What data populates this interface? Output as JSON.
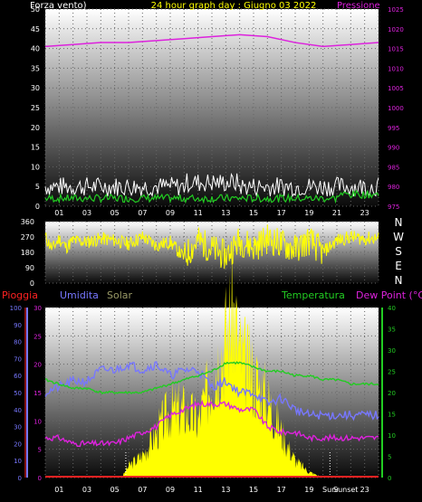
{
  "header": {
    "left_label": "Forza vento)",
    "title": "24 hour graph day : Giugno 03 2022",
    "right_label": "Pressione"
  },
  "compass": [
    "N",
    "W",
    "S",
    "E",
    "N"
  ],
  "bottom_header": {
    "rain": "Pioggia",
    "humidity": "Umidita",
    "solar": "Solar",
    "temperature": "Temperatura",
    "dewpoint": "Dew Point (°C)"
  },
  "sun_labels": {
    "sunrise": "Sunr",
    "sunset": "Sunset"
  },
  "colors": {
    "wind_white": "#ffffff",
    "wind_green": "#22cc22",
    "pressure": "#dd22dd",
    "direction": "#ffff00",
    "rain": "#ff2222",
    "humidity": "#7777ff",
    "solar": "#ffff00",
    "temperature": "#22cc22",
    "dewpoint": "#dd22dd",
    "title": "#ffff00"
  },
  "chart_data": [
    {
      "type": "line",
      "name": "wind_pressure",
      "x_ticks": [
        "01",
        "03",
        "05",
        "07",
        "09",
        "11",
        "13",
        "15",
        "17",
        "19",
        "21",
        "23"
      ],
      "y_left_ticks": [
        "0",
        "5",
        "10",
        "15",
        "20",
        "25",
        "30",
        "35",
        "40",
        "45",
        "50"
      ],
      "y_left_range": [
        0,
        50
      ],
      "y_right_ticks": [
        "975",
        "980",
        "985",
        "990",
        "995",
        "1000",
        "1005",
        "1010",
        "1015",
        "1020",
        "1025"
      ],
      "y_right_range": [
        975,
        1025
      ],
      "series": [
        {
          "name": "Pressione",
          "x": [
            0,
            2,
            4,
            6,
            8,
            10,
            12,
            14,
            16,
            18,
            20,
            22,
            24
          ],
          "values": [
            1015.5,
            1016,
            1016.5,
            1016.5,
            1017,
            1017.5,
            1018,
            1018.5,
            1018,
            1016.5,
            1015.5,
            1016,
            1016.5
          ]
        }
      ],
      "wind_gust_avg": 5,
      "wind_avg": 2
    },
    {
      "type": "line",
      "name": "wind_direction",
      "y_ticks": [
        "0",
        "90",
        "180",
        "270",
        "360"
      ],
      "y_range": [
        0,
        360
      ],
      "series": [
        {
          "x": [
            0,
            0.5,
            1,
            1.5,
            2,
            3,
            4,
            5,
            6,
            7,
            8,
            9,
            10,
            11,
            12,
            13,
            14,
            15,
            16,
            17,
            18,
            19,
            20,
            21,
            22,
            23,
            24
          ],
          "values": [
            270,
            200,
            260,
            210,
            250,
            240,
            260,
            250,
            230,
            270,
            220,
            240,
            150,
            250,
            200,
            160,
            250,
            210,
            260,
            230,
            200,
            250,
            180,
            250,
            270,
            260,
            265
          ]
        }
      ]
    },
    {
      "type": "line",
      "name": "temp_hum_solar",
      "y_rain_ticks": [
        "0",
        "10",
        "20",
        "30",
        "40",
        "50",
        "60",
        "70",
        "80",
        "90",
        "100"
      ],
      "y_hum_ticks": [
        "0",
        "5",
        "10",
        "15",
        "20",
        "25",
        "30"
      ],
      "y_hum_range": [
        0,
        30
      ],
      "y_temp_ticks": [
        "0",
        "5",
        "10",
        "15",
        "20",
        "25",
        "30",
        "35",
        "40"
      ],
      "y_temp_range": [
        0,
        40
      ],
      "series": [
        {
          "name": "Temperatura",
          "x": [
            0,
            1,
            2,
            3,
            4,
            5,
            6,
            7,
            8,
            9,
            10,
            11,
            12,
            13,
            14,
            15,
            16,
            17,
            18,
            19,
            20,
            21,
            22,
            23,
            24
          ],
          "values": [
            23,
            22,
            21,
            21,
            20,
            20,
            20,
            20,
            21,
            22,
            23,
            24,
            25,
            27,
            27,
            26,
            25,
            25,
            24,
            24,
            23,
            23,
            22,
            22,
            22
          ]
        },
        {
          "name": "Umidita",
          "x": [
            0,
            1,
            2,
            3,
            4,
            5,
            6,
            7,
            8,
            9,
            10,
            11,
            12,
            13,
            14,
            15,
            16,
            17,
            18,
            19,
            20,
            21,
            22,
            23,
            24
          ],
          "values": [
            15,
            16,
            17,
            17,
            19,
            19,
            20,
            19,
            20,
            18,
            19,
            19,
            16,
            17,
            15,
            15,
            13,
            14,
            12,
            11,
            11,
            11,
            11,
            11,
            11
          ]
        },
        {
          "name": "Dew Point",
          "x": [
            0,
            1,
            2,
            3,
            4,
            5,
            6,
            7,
            8,
            9,
            10,
            11,
            12,
            13,
            14,
            15,
            16,
            17,
            18,
            19,
            20,
            21,
            22,
            23,
            24
          ],
          "values": [
            7,
            7,
            6,
            6,
            6,
            6,
            7,
            8,
            9,
            11,
            12,
            13,
            13,
            13,
            12,
            12,
            9,
            8,
            8,
            7,
            7,
            7,
            7,
            7,
            7
          ]
        },
        {
          "name": "Solar",
          "x": [
            0,
            5.5,
            6,
            7,
            8,
            9,
            10,
            11,
            12,
            13,
            13.5,
            14,
            15,
            16,
            17,
            18,
            19,
            20,
            24
          ],
          "values": [
            0,
            0,
            2,
            4,
            8,
            12,
            12,
            10,
            18,
            25,
            30,
            22,
            18,
            14,
            8,
            3,
            1,
            0,
            0
          ]
        }
      ]
    }
  ]
}
